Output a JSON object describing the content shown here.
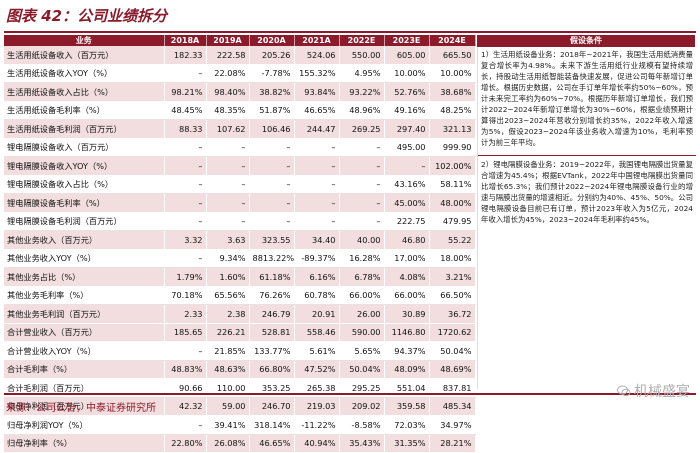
{
  "title": "图表 42：公司业绩拆分",
  "table": {
    "headers": [
      "业务",
      "2018A",
      "2019A",
      "2020A",
      "2021A",
      "2022E",
      "2023E",
      "2024E"
    ],
    "rows": [
      {
        "style": "pink",
        "sep": false,
        "label": "生活用纸设备收入（百万元）",
        "values": [
          "182.33",
          "222.58",
          "205.26",
          "524.06",
          "550.00",
          "605.00",
          "665.50"
        ]
      },
      {
        "style": "white",
        "sep": false,
        "label": "生活用纸设备收入YOY（%）",
        "values": [
          "–",
          "22.08%",
          "-7.78%",
          "155.32%",
          "4.95%",
          "10.00%",
          "10.00%"
        ]
      },
      {
        "style": "pink",
        "sep": false,
        "label": "生活用纸设备收入占比（%）",
        "values": [
          "98.21%",
          "98.40%",
          "38.82%",
          "93.84%",
          "93.22%",
          "52.76%",
          "38.68%"
        ]
      },
      {
        "style": "white",
        "sep": false,
        "label": "生活用纸设备毛利率（%）",
        "values": [
          "48.45%",
          "48.35%",
          "51.87%",
          "46.65%",
          "48.96%",
          "49.16%",
          "48.25%"
        ]
      },
      {
        "style": "pink",
        "sep": false,
        "label": "生活用纸设备毛利润（百万元）",
        "values": [
          "88.33",
          "107.62",
          "106.46",
          "244.47",
          "269.25",
          "297.40",
          "321.13"
        ]
      },
      {
        "style": "white",
        "sep": true,
        "label": "锂电隔膜设备收入（百万元）",
        "values": [
          "–",
          "–",
          "–",
          "–",
          "–",
          "495.00",
          "999.90"
        ]
      },
      {
        "style": "pink",
        "sep": false,
        "label": "锂电隔膜设备收入YOY（%）",
        "values": [
          "–",
          "–",
          "–",
          "–",
          "–",
          "–",
          "102.00%"
        ]
      },
      {
        "style": "white",
        "sep": false,
        "label": "锂电隔膜设备收入占比（%）",
        "values": [
          "–",
          "–",
          "–",
          "–",
          "–",
          "43.16%",
          "58.11%"
        ]
      },
      {
        "style": "pink",
        "sep": false,
        "label": "锂电隔膜设备毛利率（%）",
        "values": [
          "–",
          "–",
          "–",
          "–",
          "–",
          "45.00%",
          "48.00%"
        ]
      },
      {
        "style": "white",
        "sep": false,
        "label": "锂电隔膜设备毛利润（百万元）",
        "values": [
          "–",
          "–",
          "–",
          "–",
          "–",
          "222.75",
          "479.95"
        ]
      },
      {
        "style": "pink",
        "sep": true,
        "label": "其他业务收入（百万元）",
        "values": [
          "3.32",
          "3.63",
          "323.55",
          "34.40",
          "40.00",
          "46.80",
          "55.22"
        ]
      },
      {
        "style": "white",
        "sep": false,
        "label": "其他业务收入YOY（%）",
        "values": [
          "–",
          "9.34%",
          "8813.22%",
          "-89.37%",
          "16.28%",
          "17.00%",
          "18.00%"
        ]
      },
      {
        "style": "pink",
        "sep": false,
        "label": "其他业务占比（%）",
        "values": [
          "1.79%",
          "1.60%",
          "61.18%",
          "6.16%",
          "6.78%",
          "4.08%",
          "3.21%"
        ]
      },
      {
        "style": "white",
        "sep": false,
        "label": "其他业务毛利率（%）",
        "values": [
          "70.18%",
          "65.56%",
          "76.26%",
          "60.78%",
          "66.00%",
          "66.00%",
          "66.50%"
        ]
      },
      {
        "style": "pink",
        "sep": false,
        "label": "其他业务毛利润（百万元）",
        "values": [
          "2.33",
          "2.38",
          "246.79",
          "20.91",
          "26.00",
          "30.89",
          "36.72"
        ]
      },
      {
        "style": "pink",
        "sep": true,
        "label": "合计营业收入（百万元）",
        "values": [
          "185.65",
          "226.21",
          "528.81",
          "558.46",
          "590.00",
          "1146.80",
          "1720.62"
        ]
      },
      {
        "style": "white",
        "sep": false,
        "label": "合计营业收入YOY（%）",
        "values": [
          "–",
          "21.85%",
          "133.77%",
          "5.61%",
          "5.65%",
          "94.37%",
          "50.04%"
        ]
      },
      {
        "style": "pink",
        "sep": false,
        "label": "合计毛利率（%）",
        "values": [
          "48.83%",
          "48.63%",
          "66.80%",
          "47.52%",
          "50.04%",
          "48.09%",
          "48.69%"
        ]
      },
      {
        "style": "white",
        "sep": false,
        "label": "合计毛利润（百万元）",
        "values": [
          "90.66",
          "110.00",
          "353.25",
          "265.38",
          "295.25",
          "551.04",
          "837.81"
        ]
      },
      {
        "style": "pink",
        "sep": false,
        "label": "归母净利润（百万元）",
        "values": [
          "42.32",
          "59.00",
          "246.70",
          "219.03",
          "209.02",
          "359.58",
          "485.34"
        ]
      },
      {
        "style": "white",
        "sep": false,
        "label": "归母净利润YOY（%）",
        "values": [
          "–",
          "39.41%",
          "318.14%",
          "-11.22%",
          "-8.58%",
          "72.03%",
          "34.97%"
        ]
      },
      {
        "style": "pink",
        "sep": false,
        "label": "归母净利率（%）",
        "values": [
          "22.80%",
          "26.08%",
          "46.65%",
          "40.94%",
          "35.43%",
          "31.35%",
          "28.21%"
        ]
      }
    ]
  },
  "assumptions": {
    "header": "假设条件",
    "para1": "1）生活用纸设备业务：2018年~2021年，我国生活用纸消费量复合增长率为4.98%。未来下游生活用纸行业规模有望持续增长，持股动生活用纸智能装备快速发展，促进公司每年新增订单增长。根据历史数据，公司在手订单年增长率约50%~60%，预计未来完工率约为60%~70%。根据历年新增订单增长，我们预计2022~2024年新增订单增长为30%~60%，根据业绩预期计算得出2023~2024年营收分别增长约35%，2022年收入增速为5%，假设2023~2024年该业务收入增速为10%，毛利率预计为前三年平均。",
    "para2": "2）锂电隔膜设备业务：2019~2022年，我国锂电隔膜出货量复合增速为45.4%；根据EVTank，2022年中国锂电隔膜出货量同比增长65.3%；我们预计2022~2024年锂电隔膜设备行业的增速与隔膜出货量的增速相近。分别约为40%、45%、50%。公司锂电隔膜设备目前已有订单，预计2023年收入为5亿元，2024年收入增长为45%，2023~2024年毛利率约45%。"
  },
  "source": "来源：公司公告，中泰证券研究所",
  "watermark": "机械盛宴"
}
